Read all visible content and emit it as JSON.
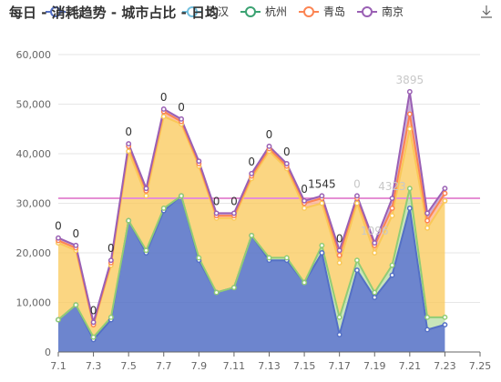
{
  "chart_data": {
    "type": "area",
    "title": "每日 - 消耗趋势 - 城市占比 - 日均",
    "stacked": true,
    "x": [
      "7.1",
      "7.2",
      "7.3",
      "7.4",
      "7.5",
      "7.6",
      "7.7",
      "7.8",
      "7.9",
      "7.10",
      "7.11",
      "7.12",
      "7.13",
      "7.14",
      "7.15",
      "7.16",
      "7.17",
      "7.18",
      "7.19",
      "7.20",
      "7.21",
      "7.22",
      "7.23"
    ],
    "x_tick_labels": [
      "7.1",
      "7.3",
      "7.5",
      "7.7",
      "7.9",
      "7.11",
      "7.13",
      "7.15",
      "7.17",
      "7.19",
      "7.21",
      "7.23",
      "7.25"
    ],
    "ylim": [
      0,
      60000
    ],
    "y_ticks": [
      0,
      10000,
      20000,
      30000,
      40000,
      50000,
      60000
    ],
    "y_tick_labels": [
      "0",
      "10,000",
      "20,000",
      "30,000",
      "40,000",
      "50,000",
      "60,000"
    ],
    "grid": true,
    "legend_position": "top",
    "legend": [
      {
        "name": "北",
        "color": "#5470c6"
      },
      {
        "name": "武汉",
        "color": "#73c0de"
      },
      {
        "name": "杭州",
        "color": "#3ba272"
      },
      {
        "name": "青岛",
        "color": "#fc8452"
      },
      {
        "name": "南京",
        "color": "#9a60b4"
      }
    ],
    "series": [
      {
        "name": "北",
        "color": "#5470c6",
        "values": [
          6500,
          9500,
          2500,
          6500,
          26500,
          20000,
          28500,
          31500,
          18500,
          12000,
          13000,
          23500,
          18500,
          18500,
          14000,
          20000,
          3500,
          16500,
          11000,
          15500,
          29000,
          4500,
          5500
        ]
      },
      {
        "color": "#91cc75",
        "values": [
          0,
          0,
          500,
          500,
          0,
          500,
          500,
          0,
          500,
          0,
          0,
          0,
          500,
          500,
          0,
          1500,
          3500,
          2000,
          1000,
          2000,
          4000,
          2500,
          1500
        ]
      },
      {
        "color": "#fac858",
        "values": [
          15500,
          11000,
          2500,
          10500,
          14000,
          11000,
          18500,
          14500,
          18500,
          15000,
          14000,
          11500,
          21500,
          18000,
          15000,
          8500,
          11000,
          11500,
          8000,
          10000,
          12000,
          18000,
          23500
        ]
      },
      {
        "name": "青岛",
        "color": "#fc8452",
        "values": [
          500,
          500,
          0,
          500,
          1000,
          1000,
          1000,
          500,
          500,
          500,
          500,
          500,
          500,
          500,
          1000,
          1000,
          1500,
          1000,
          1500,
          1500,
          3000,
          1500,
          1500
        ]
      },
      {
        "name": "南京",
        "color": "#9a60b4",
        "values": [
          500,
          500,
          500,
          500,
          500,
          500,
          500,
          500,
          500,
          500,
          500,
          500,
          500,
          500,
          500,
          500,
          1000,
          500,
          500,
          2000,
          4500,
          1500,
          1000
        ]
      }
    ],
    "mark_line": {
      "value": 31000,
      "color": "#e58fd4"
    },
    "annotations": [
      {
        "x": "7.1",
        "label": "0"
      },
      {
        "x": "7.2",
        "label": "0"
      },
      {
        "x": "7.3",
        "label": "0"
      },
      {
        "x": "7.4",
        "label": "0"
      },
      {
        "x": "7.5",
        "label": "0"
      },
      {
        "x": "7.7",
        "label": "0"
      },
      {
        "x": "7.8",
        "label": "0"
      },
      {
        "x": "7.10",
        "label": "0"
      },
      {
        "x": "7.11",
        "label": "0"
      },
      {
        "x": "7.12",
        "label": "0"
      },
      {
        "x": "7.13",
        "label": "0"
      },
      {
        "x": "7.14",
        "label": "0"
      },
      {
        "x": "7.15",
        "label": "0"
      },
      {
        "x": "7.16",
        "label": "1545"
      },
      {
        "x": "7.17",
        "label": "0"
      },
      {
        "x": "7.18",
        "label": "0",
        "faint": true
      },
      {
        "x": "7.19",
        "label": "1096",
        "faint": true
      },
      {
        "x": "7.20",
        "label": "4323",
        "faint": true
      },
      {
        "x": "7.21",
        "label": "3895",
        "faint": true
      }
    ]
  }
}
